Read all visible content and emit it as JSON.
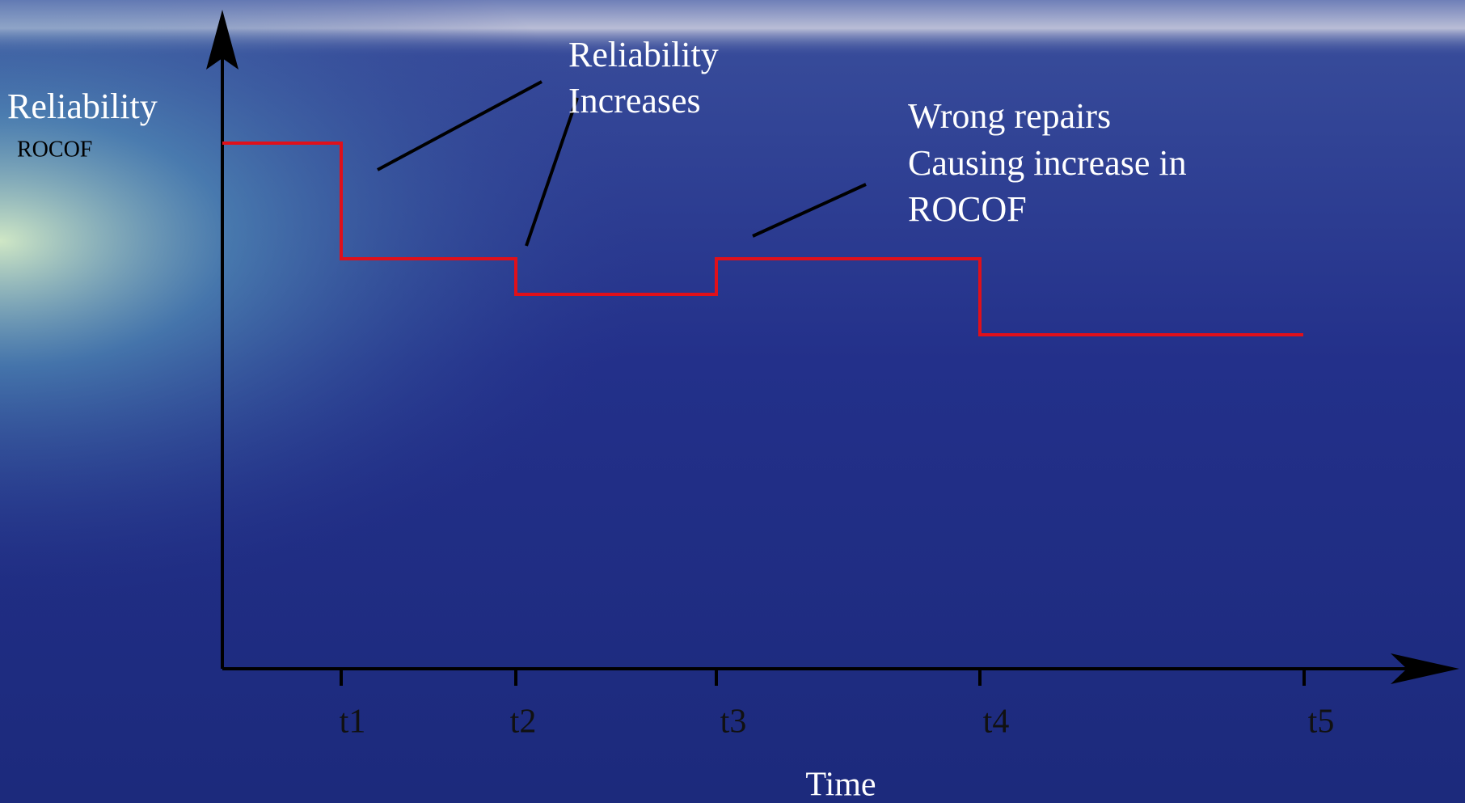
{
  "y_axis_label": {
    "primary": "Reliability",
    "secondary": "ROCOF"
  },
  "x_axis_label": "Time",
  "x_ticks": [
    "t1",
    "t2",
    "t3",
    "t4",
    "t5"
  ],
  "annotations": [
    {
      "lines": [
        "Reliability",
        "Increases"
      ]
    },
    {
      "lines": [
        "Wrong repairs",
        "Causing increase in",
        "ROCOF"
      ]
    }
  ]
}
